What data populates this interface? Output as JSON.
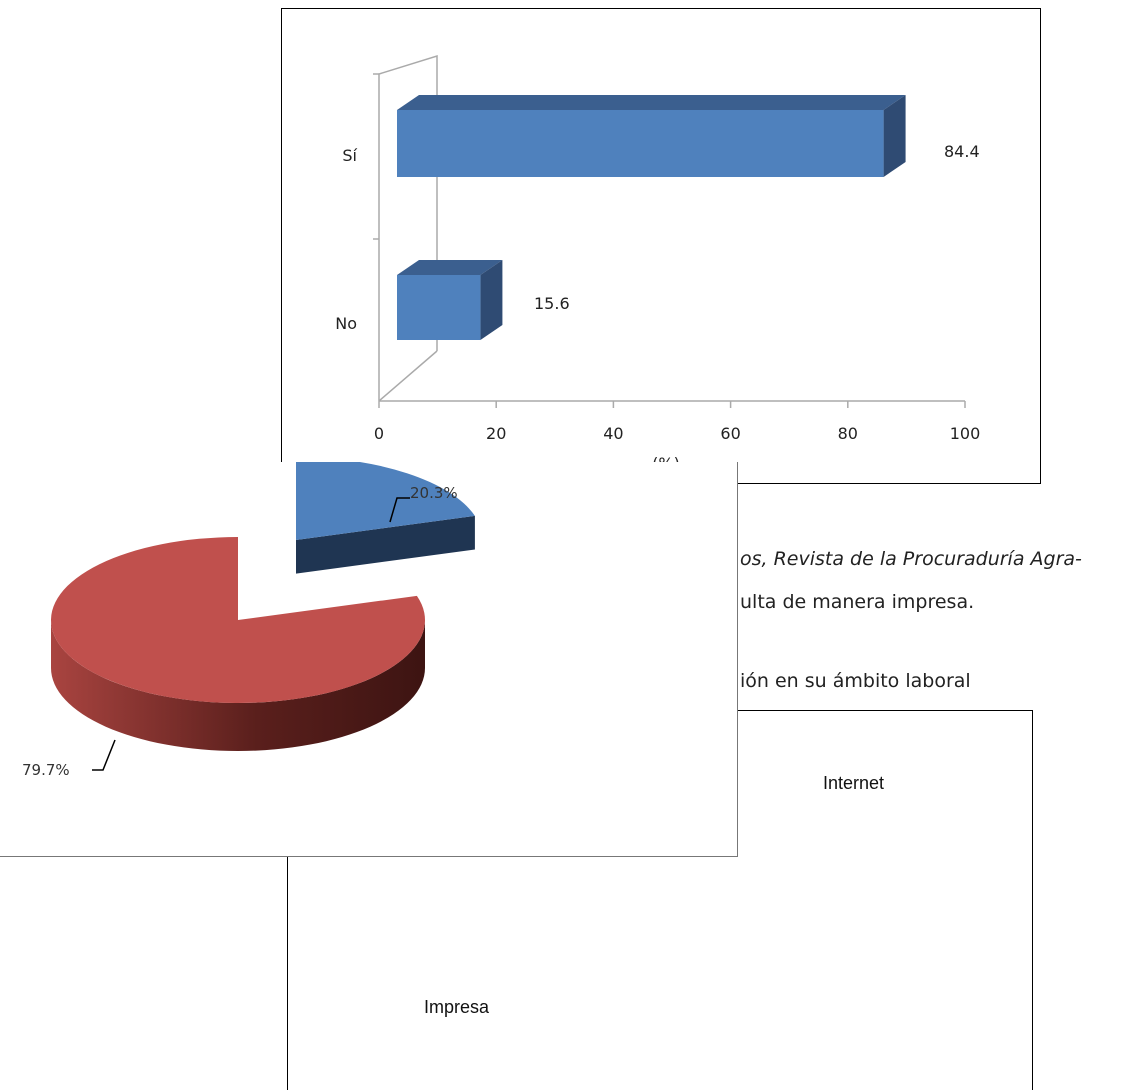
{
  "document_text": {
    "line1": "os, Revista de la Procuraduría Agra-",
    "line2": "ulta de manera impresa.",
    "line3": "ión en su ámbito laboral"
  },
  "background_chart_labels": {
    "internet": "Internet",
    "impresa": "Impresa"
  },
  "chart_data": [
    {
      "type": "bar",
      "orientation": "horizontal",
      "categories": [
        "Sí",
        "No"
      ],
      "values": [
        84.4,
        15.6
      ],
      "data_labels": [
        "84.4",
        "15.6"
      ],
      "xlabel": "(%)",
      "xlim": [
        0,
        100
      ],
      "xticks": [
        "0",
        "20",
        "40",
        "60",
        "80",
        "100"
      ],
      "colors": {
        "bar_front": "#4f81bd",
        "bar_top": "#3b5f8f",
        "bar_side": "#2f4b73",
        "axis": "#aaaaaa"
      }
    },
    {
      "type": "pie",
      "values": [
        20.3,
        79.7
      ],
      "data_labels": [
        "20.3%",
        "79.7%"
      ],
      "colors": [
        "#4f81bd",
        "#c0504d"
      ],
      "side_colors": [
        "#1f3552",
        "#5a1f1c"
      ]
    }
  ]
}
